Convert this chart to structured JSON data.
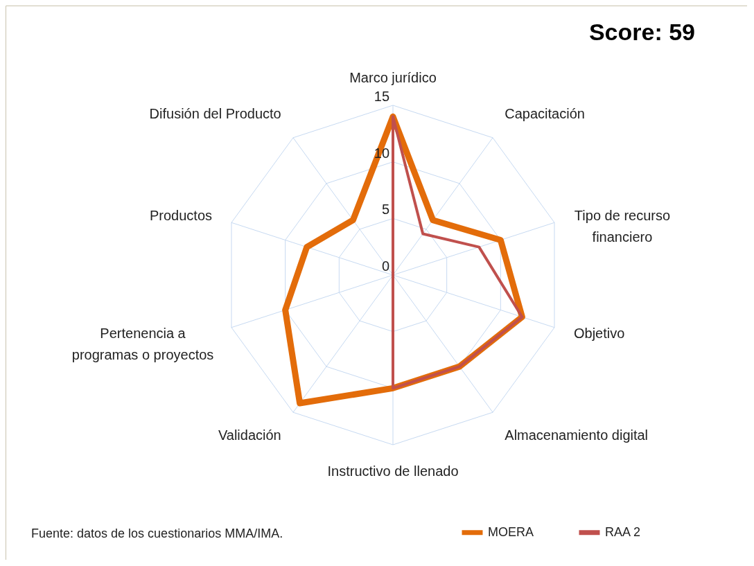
{
  "chart_data": {
    "type": "radar",
    "title": "Score: 59",
    "categories": [
      "Marco jurídico",
      "Capacitación",
      "Tipo de recurso financiero",
      "Objetivo",
      "Almacenamiento digital",
      "Instructivo de llenado",
      "Validación",
      "Pertenencia a programas o proyectos",
      "Productos",
      "Difusión del Producto"
    ],
    "series": [
      {
        "name": "MOERA",
        "color": "#e36c0a",
        "values": [
          14,
          6,
          10,
          12,
          10,
          10,
          14,
          10,
          8,
          6
        ]
      },
      {
        "name": "RAA 2",
        "color": "#c0504d",
        "values": [
          14,
          4.5,
          8,
          12,
          10,
          10,
          0,
          0,
          0,
          0
        ]
      }
    ],
    "ylim": [
      0,
      15
    ],
    "yticks": [
      0,
      5,
      10,
      15
    ],
    "grid": true,
    "legend": "bottom right",
    "annotations": [
      "Fuente: datos de los cuestionarios MMA/IMA."
    ]
  }
}
